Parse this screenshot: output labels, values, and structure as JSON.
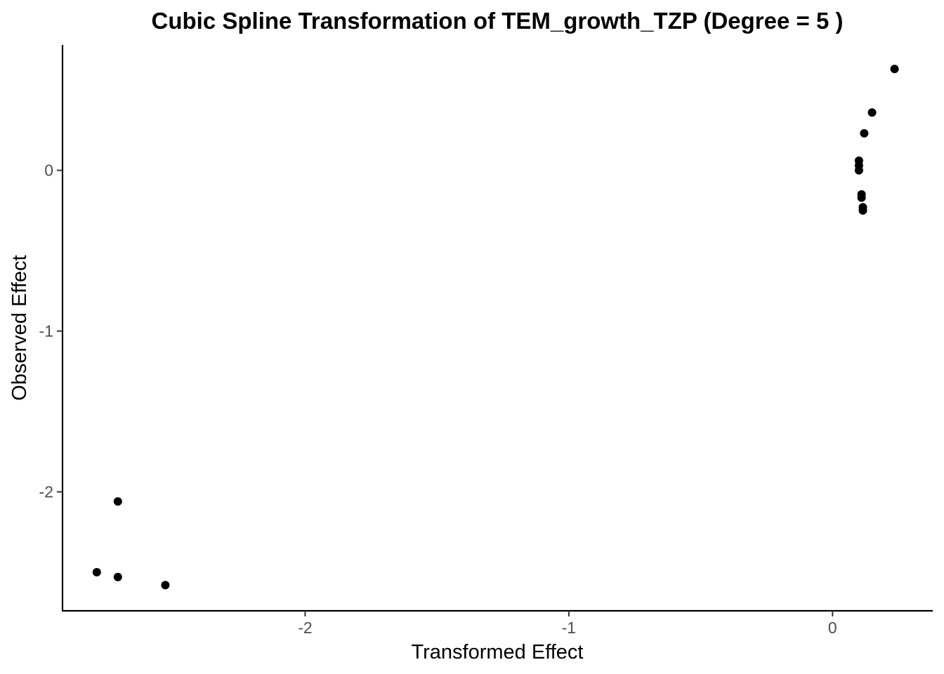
{
  "chart_data": {
    "type": "scatter",
    "title": "Cubic Spline Transformation of TEM_growth_TZP (Degree = 5 )",
    "xlabel": "Transformed Effect",
    "ylabel": "Observed Effect",
    "xlim": [
      -2.92,
      0.38
    ],
    "ylim": [
      -2.74,
      0.78
    ],
    "x_ticks": [
      {
        "value": -2,
        "label": "-2"
      },
      {
        "value": -1,
        "label": "-1"
      },
      {
        "value": 0,
        "label": "0"
      }
    ],
    "y_ticks": [
      {
        "value": -2,
        "label": "-2"
      },
      {
        "value": -1,
        "label": "-1"
      },
      {
        "value": 0,
        "label": "0"
      }
    ],
    "grid": false,
    "point_color": "#000000",
    "points": [
      {
        "x": 0.235,
        "y": 0.63
      },
      {
        "x": 0.15,
        "y": 0.36
      },
      {
        "x": 0.12,
        "y": 0.23
      },
      {
        "x": 0.1,
        "y": 0.06
      },
      {
        "x": 0.1,
        "y": 0.03
      },
      {
        "x": 0.1,
        "y": 0.0
      },
      {
        "x": 0.11,
        "y": -0.15
      },
      {
        "x": 0.11,
        "y": -0.17
      },
      {
        "x": 0.115,
        "y": -0.23
      },
      {
        "x": 0.115,
        "y": -0.25
      },
      {
        "x": -2.71,
        "y": -2.06
      },
      {
        "x": -2.79,
        "y": -2.5
      },
      {
        "x": -2.71,
        "y": -2.53
      },
      {
        "x": -2.53,
        "y": -2.58
      }
    ]
  }
}
